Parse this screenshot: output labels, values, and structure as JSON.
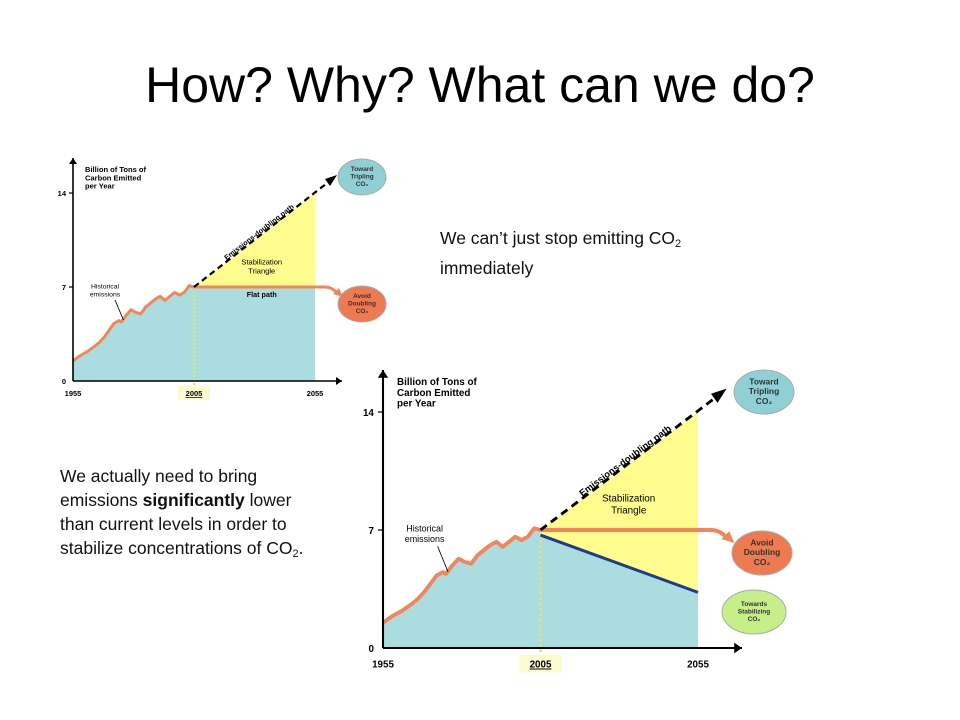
{
  "slide": {
    "title": "How?  Why? What can we do?",
    "note1": {
      "text": "We can’t just stop emitting CO",
      "sub": "2",
      "after": " immediately"
    },
    "note2": {
      "before": "We actually need to bring emissions ",
      "bold": "significantly",
      "after": " lower than current levels in order to stabilize concentrations of CO",
      "sub": "2",
      "end": "."
    }
  },
  "colors": {
    "history": "#f0875a",
    "fill_blue": "#abdcdf",
    "fill_yellow": "#fefc8c",
    "bubble_blue": "#8fcfd6",
    "bubble_orange": "#f07a50",
    "bubble_green": "#c6ef8a",
    "reduction_line": "#1f3b8a",
    "year_highlight": "#fbfbcf"
  },
  "chart_data": [
    {
      "type": "area",
      "ylabel": [
        "Billion of Tons of",
        "Carbon Emitted",
        "per Year"
      ],
      "yticks": [
        "0",
        "7",
        "14"
      ],
      "xticks": [
        "1955",
        "2005",
        "2055"
      ],
      "ylim": [
        0,
        14
      ],
      "xlim": [
        1955,
        2055
      ],
      "highlight_year": "2005",
      "historical": {
        "x": [
          1955,
          1958,
          1961,
          1964,
          1966,
          1968,
          1970,
          1972,
          1974,
          1975,
          1977,
          1979,
          1981,
          1983,
          1985,
          1987,
          1989,
          1991,
          1993,
          1995,
          1997,
          1999,
          2001,
          2003,
          2005
        ],
        "y": [
          1.5,
          1.9,
          2.2,
          2.6,
          2.9,
          3.3,
          3.8,
          4.3,
          4.5,
          4.4,
          4.9,
          5.3,
          5.1,
          5.0,
          5.5,
          5.8,
          6.1,
          6.3,
          6.0,
          6.3,
          6.6,
          6.4,
          6.6,
          7.1,
          7.0
        ]
      },
      "doubling_path": {
        "x": [
          2005,
          2055
        ],
        "y": [
          7,
          14
        ]
      },
      "flat_path": {
        "x": [
          2005,
          2055
        ],
        "y": [
          7,
          7
        ]
      },
      "labels": {
        "doubling": "Emissions-doubling path",
        "triangle": [
          "Stabilization",
          "Triangle"
        ],
        "flat": "Flat path",
        "historical": [
          "Historical",
          "emissions"
        ]
      },
      "bubbles": {
        "tripling": [
          "Toward",
          "Tripling",
          "CO₂"
        ],
        "doubling": [
          "Avoid",
          "Doubling",
          "CO₂"
        ]
      }
    },
    {
      "type": "area",
      "ylabel": [
        "Billion of Tons of",
        "Carbon Emitted",
        "per Year"
      ],
      "yticks": [
        "0",
        "7",
        "14"
      ],
      "xticks": [
        "1955",
        "2005",
        "2055"
      ],
      "ylim": [
        0,
        14
      ],
      "xlim": [
        1955,
        2055
      ],
      "highlight_year": "2005",
      "historical": {
        "x": [
          1955,
          1958,
          1961,
          1964,
          1966,
          1968,
          1970,
          1972,
          1974,
          1975,
          1977,
          1979,
          1981,
          1983,
          1985,
          1987,
          1989,
          1991,
          1993,
          1995,
          1997,
          1999,
          2001,
          2003,
          2005
        ],
        "y": [
          1.5,
          1.9,
          2.2,
          2.6,
          2.9,
          3.3,
          3.8,
          4.3,
          4.5,
          4.4,
          4.9,
          5.3,
          5.1,
          5.0,
          5.5,
          5.8,
          6.1,
          6.3,
          6.0,
          6.3,
          6.6,
          6.4,
          6.6,
          7.1,
          7.0
        ]
      },
      "doubling_path": {
        "x": [
          2005,
          2055
        ],
        "y": [
          7,
          14
        ]
      },
      "flat_path": {
        "x": [
          2005,
          2055
        ],
        "y": [
          7,
          7
        ]
      },
      "reduction_path": {
        "x": [
          2005,
          2055
        ],
        "y": [
          6.7,
          3.3
        ]
      },
      "labels": {
        "doubling": "Emissions-doubling path",
        "triangle": [
          "Stabilization",
          "Triangle"
        ],
        "historical": [
          "Historical",
          "emissions"
        ]
      },
      "bubbles": {
        "tripling": [
          "Toward",
          "Tripling",
          "CO₂"
        ],
        "doubling": [
          "Avoid",
          "Doubling",
          "CO₂"
        ],
        "stabilizing": [
          "Towards",
          "Stabilizing",
          "CO₂"
        ]
      }
    }
  ]
}
